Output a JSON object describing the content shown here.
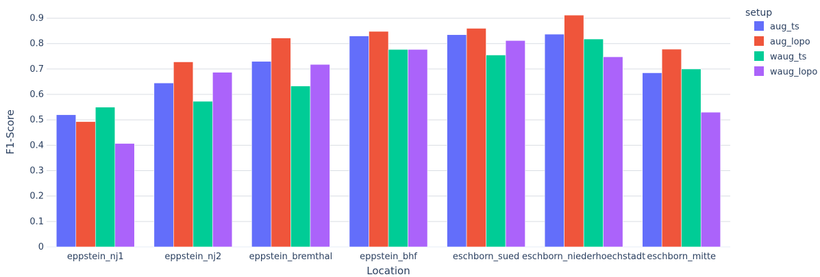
{
  "chart_data": {
    "type": "bar",
    "categories": [
      "eppstein_nj1",
      "eppstein_nj2",
      "eppstein_bremthal",
      "eppstein_bhf",
      "eschborn_sued",
      "eschborn_niederhoechstadt",
      "eschborn_mitte"
    ],
    "series": [
      {
        "name": "aug_ts",
        "color": "#636efa",
        "values": [
          0.52,
          0.645,
          0.73,
          0.83,
          0.835,
          0.837,
          0.685
        ]
      },
      {
        "name": "aug_lopo",
        "color": "#ef553b",
        "values": [
          0.493,
          0.728,
          0.822,
          0.848,
          0.86,
          0.912,
          0.778
        ]
      },
      {
        "name": "waug_ts",
        "color": "#00cc96",
        "values": [
          0.55,
          0.573,
          0.633,
          0.777,
          0.755,
          0.818,
          0.7
        ]
      },
      {
        "name": "waug_lopo",
        "color": "#ab63fa",
        "values": [
          0.407,
          0.687,
          0.718,
          0.777,
          0.812,
          0.748,
          0.53
        ]
      }
    ],
    "xlabel": "Location",
    "ylabel": "F1-Score",
    "ylim": [
      0,
      0.95
    ],
    "yticks": [
      "0",
      "0.1",
      "0.2",
      "0.3",
      "0.4",
      "0.5",
      "0.6",
      "0.7",
      "0.8",
      "0.9"
    ],
    "legend_title": "setup",
    "legend_position": "top-right",
    "grid": true
  }
}
